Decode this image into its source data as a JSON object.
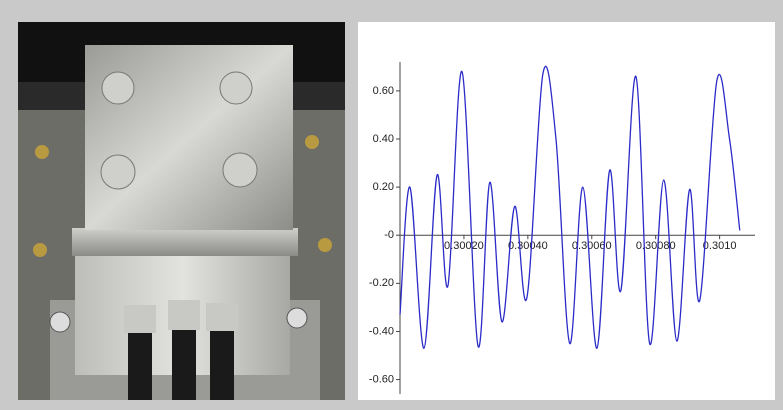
{
  "chart_data": {
    "type": "line",
    "x": [
      0.3,
      0.300031,
      0.300075,
      0.300116,
      0.30015,
      0.300194,
      0.300244,
      0.300281,
      0.300319,
      0.300359,
      0.300397,
      0.300447,
      0.300488,
      0.300531,
      0.300572,
      0.300616,
      0.300656,
      0.300691,
      0.300738,
      0.300781,
      0.300825,
      0.300866,
      0.300906,
      0.300938,
      0.300991,
      0.301031,
      0.301063
    ],
    "values": [
      -0.33,
      0.2,
      -0.47,
      0.25,
      -0.21,
      0.68,
      -0.46,
      0.22,
      -0.36,
      0.12,
      -0.26,
      0.67,
      0.4,
      -0.45,
      0.2,
      -0.47,
      0.27,
      -0.23,
      0.66,
      -0.45,
      0.23,
      -0.44,
      0.19,
      -0.27,
      0.64,
      0.4,
      0.02
    ],
    "color": "#2b2bc8",
    "xlim": [
      0.3,
      0.30107
    ],
    "ylim": [
      -0.66,
      0.72
    ],
    "xticks": [
      {
        "value": 0.3002,
        "label": "0.30020"
      },
      {
        "value": 0.3004,
        "label": "0.30040"
      },
      {
        "value": 0.3006,
        "label": "0.30060"
      },
      {
        "value": 0.3008,
        "label": "0.30080"
      },
      {
        "value": 0.301,
        "label": "0.3010"
      }
    ],
    "yticks": [
      {
        "value": 0.6,
        "label": "0.60"
      },
      {
        "value": 0.4,
        "label": "0.40"
      },
      {
        "value": 0.2,
        "label": "0.20"
      },
      {
        "value": 0,
        "label": "-0"
      },
      {
        "value": -0.2,
        "label": "-0.20"
      },
      {
        "value": -0.4,
        "label": "-0.40"
      },
      {
        "value": -0.6,
        "label": "-0.60"
      }
    ]
  }
}
